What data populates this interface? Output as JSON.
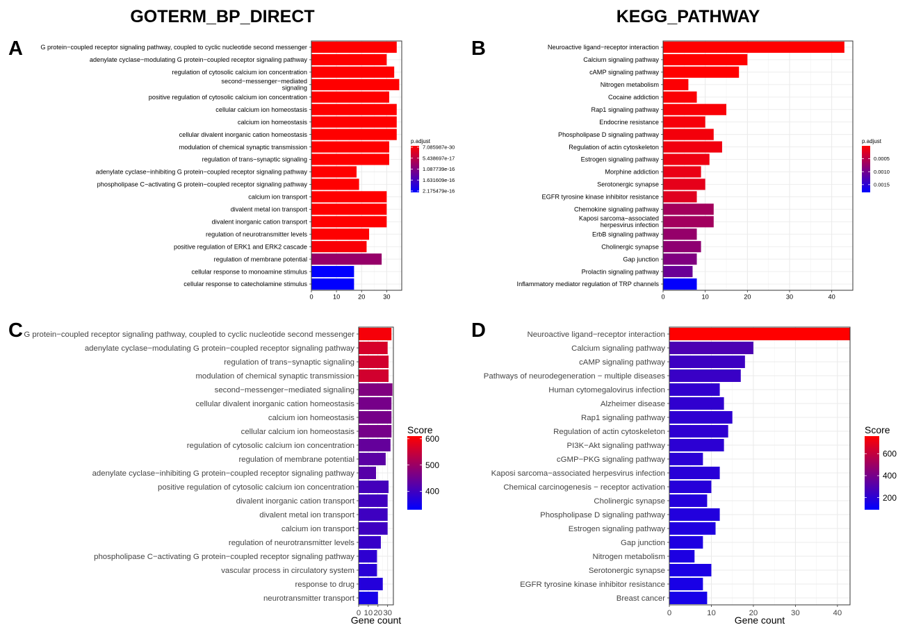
{
  "headings": {
    "left": "GOTERM_BP_DIRECT",
    "right": "KEGG_PATHWAY"
  },
  "panels": {
    "a": "A",
    "b": "B",
    "c": "C",
    "d": "D"
  },
  "chart_data": [
    {
      "panel": "A",
      "type": "bar",
      "orientation": "horizontal",
      "xlabel": "",
      "xlim": [
        0,
        36
      ],
      "xticks": [
        0,
        10,
        20,
        30
      ],
      "color_scale": {
        "title": "p.adjust",
        "min": 7.085987e-30,
        "max": 2.175479e-16,
        "low_color": "#ff0000",
        "high_color": "#0000ff",
        "ticks": [
          "7.085987e-30",
          "5.438697e-17",
          "1.087739e-16",
          "1.631609e-16",
          "2.175479e-16"
        ]
      },
      "categories": [
        "G protein−coupled receptor signaling pathway, coupled to cyclic nucleotide second messenger",
        "adenylate cyclase−modulating G protein−coupled receptor signaling pathway",
        "regulation of cytosolic calcium ion concentration",
        "second−messenger−mediated\nsignaling",
        "positive regulation of cytosolic calcium ion concentration",
        "cellular calcium ion homeostasis",
        "calcium ion homeostasis",
        "cellular divalent inorganic cation homeostasis",
        "modulation of chemical synaptic transmission",
        "regulation of trans−synaptic signaling",
        "adenylate cyclase−inhibiting G protein−coupled receptor signaling pathway",
        "phospholipase C−activating G protein−coupled receptor signaling pathway",
        "calcium ion transport",
        "divalent metal ion transport",
        "divalent inorganic cation transport",
        "regulation of neurotransmitter levels",
        "positive regulation of ERK1 and ERK2 cascade",
        "regulation of membrane potential",
        "cellular response to monoamine stimulus",
        "cellular response to catecholamine stimulus"
      ],
      "values": [
        34,
        30,
        33,
        35,
        31,
        34,
        34,
        34,
        31,
        31,
        18,
        19,
        30,
        30,
        30,
        23,
        22,
        28,
        17,
        17
      ],
      "color_values": [
        1e-30,
        2e-30,
        1e-29,
        3e-29,
        5e-29,
        7e-29,
        7e-29,
        7e-29,
        2e-22,
        2e-22,
        5e-22,
        3e-21,
        4e-20,
        4e-20,
        4e-20,
        5e-19,
        5e-18,
        9e-17,
        2.17e-16,
        2.17e-16
      ]
    },
    {
      "panel": "B",
      "type": "bar",
      "orientation": "horizontal",
      "xlabel": "",
      "xlim": [
        0,
        45
      ],
      "xticks": [
        0,
        10,
        20,
        30,
        40
      ],
      "color_scale": {
        "title": "p.adjust",
        "min": 1e-22,
        "max": 0.0018,
        "low_color": "#ff0000",
        "high_color": "#0000ff",
        "ticks": [
          "0.0005",
          "0.0010",
          "0.0015"
        ],
        "tick_values": [
          0.0005,
          0.001,
          0.0015
        ]
      },
      "categories": [
        "Neuroactive ligand−receptor interaction",
        "Calcium signaling pathway",
        "cAMP signaling pathway",
        "Nitrogen metabolism",
        "Cocaine addiction",
        "Rap1 signaling pathway",
        "Endocrine resistance",
        "Phospholipase D signaling pathway",
        "Regulation of actin cytoskeleton",
        "Estrogen signaling pathway",
        "Morphine addiction",
        "Serotonergic synapse",
        "EGFR tyrosine kinase inhibitor resistance",
        "Chemokine signaling pathway",
        "Kaposi sarcoma−associated\nherpesvirus infection",
        "ErbB signaling pathway",
        "Cholinergic synapse",
        "Gap junction",
        "Prolactin signaling pathway",
        "Inflammatory mediator regulation of TRP channels"
      ],
      "values": [
        43,
        20,
        18,
        6,
        8,
        15,
        10,
        12,
        14,
        11,
        9,
        10,
        8,
        12,
        12,
        8,
        9,
        8,
        7,
        8
      ],
      "color_values": [
        1e-22,
        1e-10,
        1e-09,
        2e-05,
        3e-05,
        4e-05,
        6e-05,
        8e-05,
        0.0001,
        0.00012,
        0.00015,
        0.00018,
        0.00022,
        0.00065,
        0.00066,
        0.00075,
        0.0008,
        0.0009,
        0.00105,
        0.00178
      ]
    },
    {
      "panel": "C",
      "type": "bar",
      "orientation": "horizontal",
      "xlabel": "Gene count",
      "xlim": [
        0,
        36
      ],
      "xticks": [
        0,
        10,
        20,
        30
      ],
      "color_scale": {
        "title": "Score",
        "min": 330,
        "max": 610,
        "low_color": "#0000ff",
        "high_color": "#ff0000",
        "ticks": [
          "400",
          "500",
          "600"
        ],
        "tick_values": [
          400,
          500,
          600
        ]
      },
      "categories": [
        "G protein−coupled receptor signaling pathway, coupled to cyclic nucleotide second messenger",
        "adenylate cyclase−modulating G protein−coupled receptor signaling pathway",
        "regulation of trans−synaptic signaling",
        "modulation of chemical synaptic transmission",
        "second−messenger−mediated signaling",
        "cellular divalent inorganic cation homeostasis",
        "calcium ion homeostasis",
        "cellular calcium ion homeostasis",
        "regulation of cytosolic calcium ion concentration",
        "regulation of membrane potential",
        "adenylate cyclase−inhibiting G protein−coupled receptor signaling pathway",
        "positive regulation of cytosolic calcium ion concentration",
        "divalent inorganic cation transport",
        "divalent metal ion transport",
        "calcium ion transport",
        "regulation of neurotransmitter levels",
        "phospholipase C−activating G protein−coupled receptor signaling pathway",
        "vascular process in circulatory system",
        "response to drug",
        "neurotransmitter transport"
      ],
      "values": [
        34,
        30,
        31,
        31,
        35,
        34,
        34,
        34,
        33,
        28,
        18,
        31,
        30,
        30,
        30,
        23,
        19,
        19,
        25,
        20
      ],
      "color_values": [
        600,
        565,
        560,
        560,
        470,
        460,
        460,
        460,
        440,
        430,
        425,
        405,
        400,
        398,
        398,
        390,
        380,
        375,
        370,
        355
      ]
    },
    {
      "panel": "D",
      "type": "bar",
      "orientation": "horizontal",
      "xlabel": "Gene count",
      "xlim": [
        0,
        43
      ],
      "xticks": [
        0,
        10,
        20,
        30,
        40
      ],
      "color_scale": {
        "title": "Score",
        "min": 90,
        "max": 760,
        "low_color": "#0000ff",
        "high_color": "#ff0000",
        "ticks": [
          "200",
          "400",
          "600"
        ],
        "tick_values": [
          200,
          400,
          600
        ]
      },
      "categories": [
        "Neuroactive ligand−receptor interaction",
        "Calcium signaling pathway",
        "cAMP signaling pathway",
        "Pathways of neurodegeneration − multiple diseases",
        "Human cytomegalovirus infection",
        "Alzheimer disease",
        "Rap1 signaling pathway",
        "Regulation of actin cytoskeleton",
        "PI3K−Akt signaling pathway",
        "cGMP−PKG signaling pathway",
        "Kaposi sarcoma−associated herpesvirus infection",
        "Chemical carcinogenesis − receptor activation",
        "Cholinergic synapse",
        "Phospholipase D signaling pathway",
        "Estrogen signaling pathway",
        "Gap junction",
        "Nitrogen metabolism",
        "Serotonergic synapse",
        "EGFR tyrosine kinase inhibitor resistance",
        "Breast cancer"
      ],
      "values": [
        43,
        20,
        18,
        17,
        12,
        13,
        15,
        14,
        13,
        8,
        12,
        10,
        9,
        12,
        11,
        8,
        6,
        10,
        8,
        9
      ],
      "color_values": [
        760,
        290,
        250,
        240,
        220,
        215,
        212,
        210,
        205,
        200,
        195,
        190,
        185,
        180,
        175,
        170,
        165,
        160,
        155,
        150
      ]
    }
  ]
}
